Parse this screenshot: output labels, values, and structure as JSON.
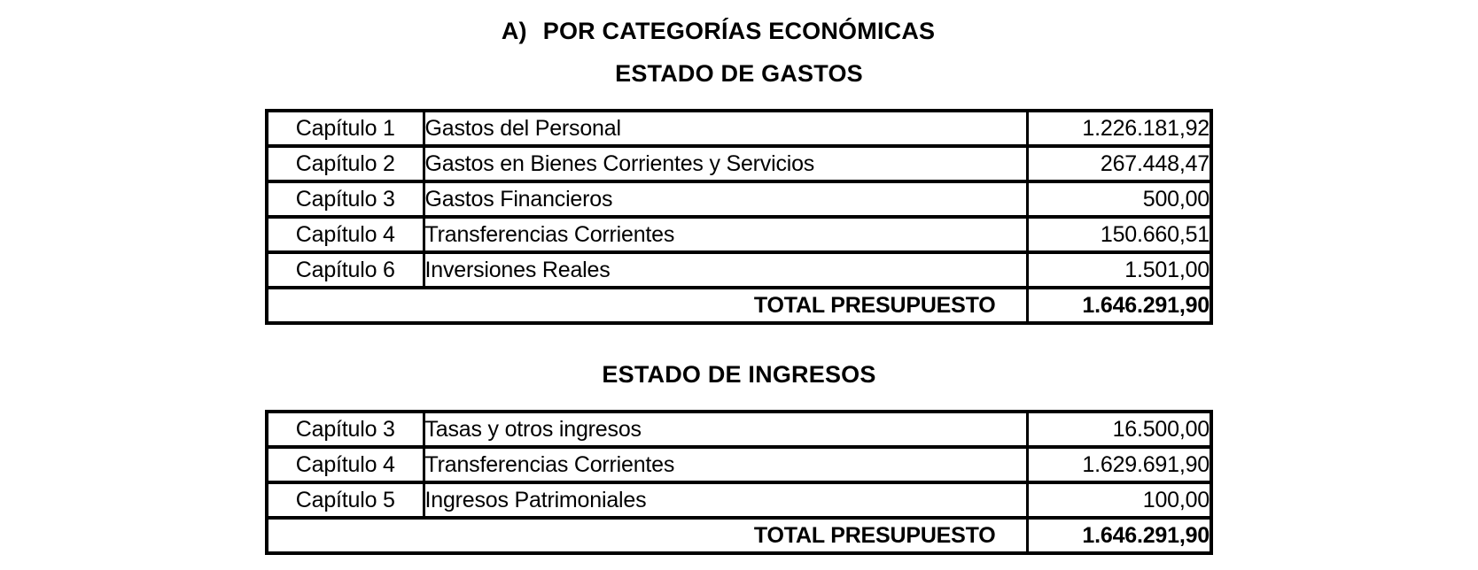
{
  "page": {
    "section_marker": "A)",
    "section_title": "POR CATEGORÍAS ECONÓMICAS"
  },
  "gastos": {
    "heading": "ESTADO DE GASTOS",
    "rows": [
      {
        "chapter": "Capítulo 1",
        "description": "Gastos del Personal",
        "amount": "1.226.181,92"
      },
      {
        "chapter": "Capítulo 2",
        "description": "Gastos en Bienes Corrientes y Servicios",
        "amount": "267.448,47"
      },
      {
        "chapter": "Capítulo 3",
        "description": "Gastos Financieros",
        "amount": "500,00"
      },
      {
        "chapter": "Capítulo 4",
        "description": "Transferencias Corrientes",
        "amount": "150.660,51"
      },
      {
        "chapter": "Capítulo 6",
        "description": "Inversiones Reales",
        "amount": "1.501,00"
      }
    ],
    "total_label": "TOTAL PRESUPUESTO",
    "total_amount": "1.646.291,90"
  },
  "ingresos": {
    "heading": "ESTADO DE INGRESOS",
    "rows": [
      {
        "chapter": "Capítulo 3",
        "description": "Tasas y otros ingresos",
        "amount": "16.500,00"
      },
      {
        "chapter": "Capítulo 4",
        "description": "Transferencias Corrientes",
        "amount": "1.629.691,90"
      },
      {
        "chapter": "Capítulo 5",
        "description": "Ingresos Patrimoniales",
        "amount": "100,00"
      }
    ],
    "total_label": "TOTAL PRESUPUESTO",
    "total_amount": "1.646.291,90"
  }
}
